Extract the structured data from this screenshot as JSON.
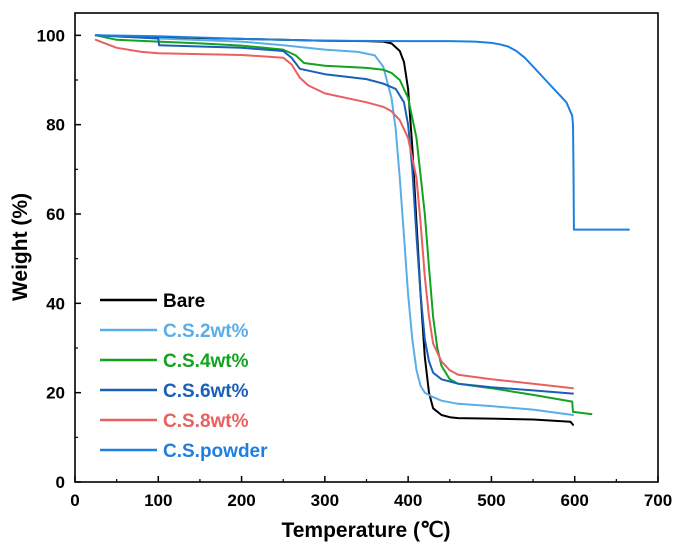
{
  "chart_data": {
    "type": "line",
    "title": "",
    "xlabel": "Temperature (℃)",
    "ylabel": "Weight (%)",
    "xlim": [
      0,
      700
    ],
    "ylim": [
      0,
      105
    ],
    "xticks": [
      0,
      100,
      200,
      300,
      400,
      500,
      600,
      700
    ],
    "yticks": [
      0,
      20,
      40,
      60,
      80,
      100
    ],
    "grid": false,
    "legend_position": "bottom-left",
    "series": [
      {
        "name": "Bare",
        "color": "#000000",
        "x": [
          25,
          100,
          200,
          300,
          350,
          370,
          380,
          390,
          395,
          400,
          405,
          410,
          415,
          420,
          425,
          430,
          440,
          450,
          460,
          500,
          550,
          595,
          598
        ],
        "y": [
          100,
          99.6,
          99.2,
          98.8,
          98.7,
          98.6,
          98.2,
          96.5,
          94,
          88,
          75,
          58,
          42,
          28,
          20,
          16.5,
          15,
          14.5,
          14.3,
          14.2,
          14,
          13.5,
          12.8
        ]
      },
      {
        "name": "C.S.2wt%",
        "color": "#5aaee8",
        "x": [
          25,
          100,
          200,
          250,
          300,
          340,
          360,
          370,
          380,
          385,
          390,
          395,
          400,
          405,
          410,
          415,
          420,
          430,
          440,
          460,
          500,
          550,
          598
        ],
        "y": [
          100,
          99.3,
          98.6,
          97.8,
          96.8,
          96.3,
          95.5,
          93,
          86,
          79,
          68,
          55,
          42,
          32,
          25,
          21.5,
          20,
          19,
          18.2,
          17.5,
          17,
          16.2,
          15
        ]
      },
      {
        "name": "C.S.4wt%",
        "color": "#13a31e",
        "x": [
          25,
          50,
          100,
          150,
          200,
          250,
          265,
          275,
          300,
          350,
          370,
          380,
          390,
          400,
          410,
          420,
          425,
          430,
          435,
          440,
          450,
          460,
          500,
          550,
          597,
          598,
          620
        ],
        "y": [
          100,
          99,
          98.6,
          98.2,
          97.7,
          96.8,
          95.5,
          93.8,
          93.2,
          92.7,
          92.3,
          91.6,
          90,
          86,
          77,
          60,
          48,
          37,
          30,
          26,
          23,
          22,
          21,
          19.5,
          18,
          15.7,
          15.2
        ]
      },
      {
        "name": "C.S.6wt%",
        "color": "#1a5fb8",
        "x": [
          25,
          100,
          101,
          150,
          200,
          250,
          260,
          270,
          300,
          350,
          370,
          385,
          395,
          400,
          405,
          410,
          415,
          420,
          425,
          430,
          440,
          460,
          500,
          550,
          598
        ],
        "y": [
          100,
          99.3,
          97.8,
          97.5,
          97.2,
          96.5,
          95,
          92.5,
          91.3,
          90.2,
          89.2,
          88,
          85,
          80,
          70,
          55,
          42,
          32,
          27,
          24.5,
          23,
          22,
          21.2,
          20.5,
          19.8
        ]
      },
      {
        "name": "C.S.8wt%",
        "color": "#e8605f",
        "x": [
          25,
          50,
          80,
          100,
          150,
          200,
          250,
          260,
          270,
          280,
          300,
          350,
          370,
          380,
          390,
          400,
          410,
          415,
          420,
          425,
          430,
          440,
          450,
          460,
          500,
          550,
          598
        ],
        "y": [
          99,
          97.2,
          96.3,
          96,
          95.8,
          95.6,
          95,
          93.5,
          90.5,
          88.8,
          87,
          85,
          84,
          83,
          81,
          77,
          68,
          58,
          46,
          37,
          31,
          27,
          25,
          24,
          23,
          22,
          21
        ]
      },
      {
        "name": "C.S.powder",
        "color": "#1e7fe0",
        "x": [
          25,
          100,
          200,
          300,
          400,
          450,
          480,
          500,
          510,
          520,
          530,
          540,
          550,
          560,
          570,
          580,
          590,
          597,
          598,
          598.5,
          599,
          640,
          665
        ],
        "y": [
          100,
          99.8,
          99.2,
          98.8,
          98.7,
          98.7,
          98.6,
          98.3,
          98,
          97.5,
          96.5,
          95,
          93,
          91,
          89,
          87,
          85,
          82,
          80,
          70,
          56.5,
          56.5,
          56.5
        ]
      }
    ]
  }
}
